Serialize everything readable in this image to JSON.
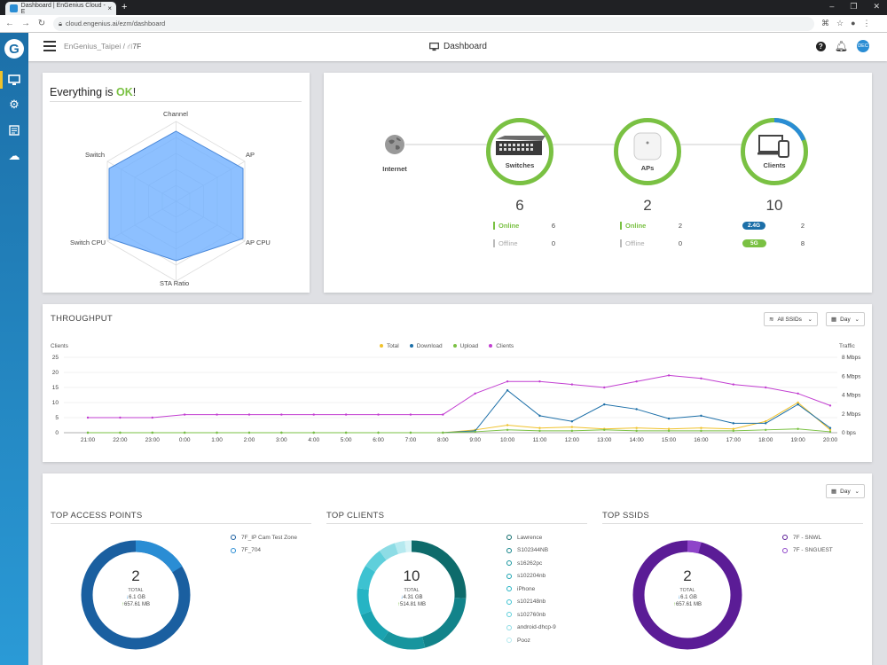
{
  "browser": {
    "tab_title": "Dashboard | EnGenius Cloud - E",
    "url": "cloud.engenius.ai/ezm/dashboard"
  },
  "header": {
    "org": "EnGenius_Taipei",
    "separator": "/",
    "network": "7F",
    "title": "Dashboard",
    "avatar_initials": "DEC"
  },
  "status": {
    "prefix": "Everything is ",
    "ok": "OK",
    "suffix": "!",
    "axes": [
      "Channel",
      "AP",
      "AP CPU",
      "STA Ratio",
      "Switch CPU",
      "Switch"
    ]
  },
  "topology": {
    "internet": "Internet",
    "nodes": [
      {
        "label": "Switches",
        "count": "6",
        "rows": [
          {
            "label": "Online",
            "value": "6"
          },
          {
            "label": "Offline",
            "value": "0"
          }
        ]
      },
      {
        "label": "APs",
        "count": "2",
        "rows": [
          {
            "label": "Online",
            "value": "2"
          },
          {
            "label": "Offline",
            "value": "0"
          }
        ]
      },
      {
        "label": "Clients",
        "count": "10",
        "rows": [
          {
            "label": "2.4G",
            "value": "2"
          },
          {
            "label": "5G",
            "value": "8"
          }
        ]
      }
    ]
  },
  "throughput": {
    "title": "THROUGHPUT",
    "ssid_filter": "All SSIDs",
    "range": "Day",
    "left_axis_label": "Clients",
    "right_axis_label": "Traffic",
    "legend": [
      "Total",
      "Download",
      "Upload",
      "Clients"
    ]
  },
  "chart_data": {
    "type": "line",
    "x": [
      "21:00",
      "22:00",
      "23:00",
      "0:00",
      "1:00",
      "2:00",
      "3:00",
      "4:00",
      "5:00",
      "6:00",
      "7:00",
      "8:00",
      "9:00",
      "10:00",
      "11:00",
      "12:00",
      "13:00",
      "14:00",
      "15:00",
      "16:00",
      "17:00",
      "18:00",
      "19:00",
      "20:00"
    ],
    "y_left_ticks": [
      "25",
      "20",
      "15",
      "10",
      "5",
      "0"
    ],
    "y_right_ticks": [
      "8 Mbps",
      "6 Mbps",
      "4 Mbps",
      "2 Mbps",
      "0 bps"
    ],
    "ylim_left": [
      0,
      25
    ],
    "ylim_right_mbps": [
      0,
      8
    ],
    "colors": {
      "Total": "#f0c22b",
      "Download": "#1c6fa8",
      "Upload": "#7ac143",
      "Clients": "#c23fd1"
    },
    "series": [
      {
        "name": "Clients",
        "values": [
          5,
          5,
          5,
          6,
          6,
          6,
          6,
          6,
          6,
          6,
          6,
          6,
          13,
          17,
          17,
          16,
          15,
          17,
          19,
          18,
          16,
          15,
          13,
          9
        ]
      },
      {
        "name": "Total",
        "values_mbps": [
          0,
          0,
          0,
          0,
          0,
          0,
          0,
          0,
          0,
          0,
          0,
          0,
          0.3,
          0.8,
          0.5,
          0.6,
          0.4,
          0.5,
          0.4,
          0.5,
          0.4,
          1.2,
          3.2,
          0.3
        ]
      },
      {
        "name": "Download",
        "values_mbps": [
          0,
          0,
          0,
          0,
          0,
          0,
          0,
          0,
          0,
          0,
          0,
          0,
          0.2,
          4.5,
          1.8,
          1.2,
          3,
          2.5,
          1.5,
          1.8,
          1,
          1,
          3,
          0.5
        ]
      },
      {
        "name": "Upload",
        "values_mbps": [
          0,
          0,
          0,
          0,
          0,
          0,
          0,
          0,
          0,
          0,
          0,
          0,
          0.1,
          0.3,
          0.2,
          0.2,
          0.3,
          0.2,
          0.2,
          0.2,
          0.2,
          0.3,
          0.4,
          0.1
        ]
      }
    ]
  },
  "top": {
    "range": "Day",
    "aps": {
      "title": "TOP ACCESS POINTS",
      "total": "2",
      "total_label": "TOTAL",
      "down": "6.1 GB",
      "up": "657.61 MB",
      "items": [
        "7F_IP Cam Test Zone",
        "7F_704"
      ]
    },
    "clients": {
      "title": "TOP CLIENTS",
      "total": "10",
      "total_label": "TOTAL",
      "down": "4.31 GB",
      "up": "514.81 MB",
      "items": [
        "Lawrence",
        "S102344NB",
        "s16262pc",
        "s102204nb",
        "iPhone",
        "s102148nb",
        "s102760nb",
        "android-dhcp-9",
        "Pooz"
      ]
    },
    "ssids": {
      "title": "TOP SSIDS",
      "total": "2",
      "total_label": "TOTAL",
      "down": "6.1 GB",
      "up": "657.61 MB",
      "items": [
        "7F - SNWL",
        "7F - SNGUEST"
      ]
    }
  }
}
